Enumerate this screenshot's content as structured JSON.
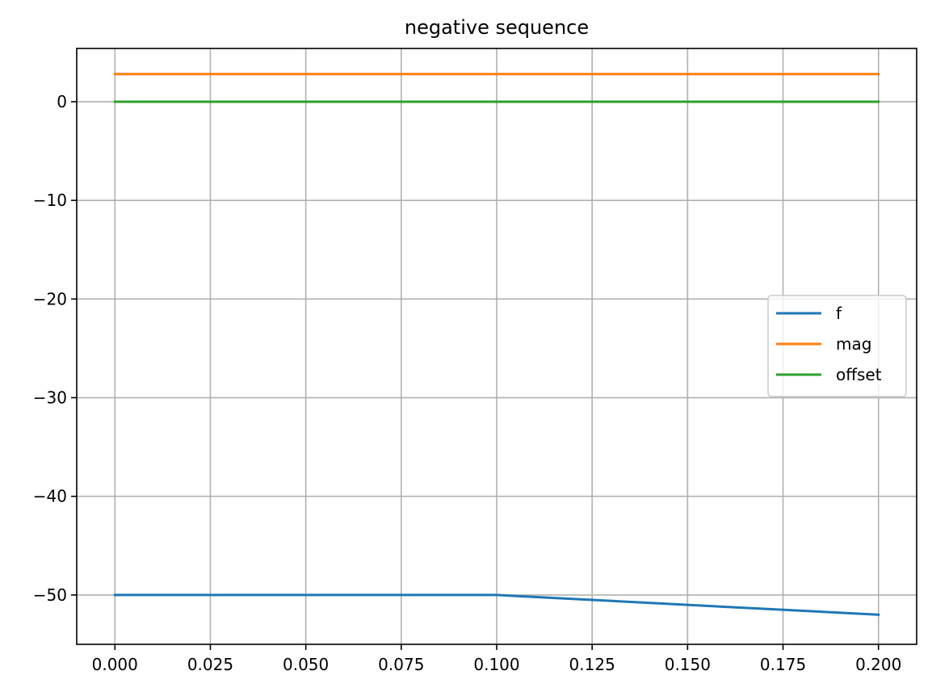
{
  "chart_data": {
    "type": "line",
    "title": "negative sequence",
    "xlabel": "",
    "ylabel": "",
    "xlim": [
      -0.01,
      0.21
    ],
    "ylim": [
      -55.0,
      5.4
    ],
    "xticks": [
      0.0,
      0.025,
      0.05,
      0.075,
      0.1,
      0.125,
      0.15,
      0.175,
      0.2
    ],
    "xtick_labels": [
      "0.000",
      "0.025",
      "0.050",
      "0.075",
      "0.100",
      "0.125",
      "0.150",
      "0.175",
      "0.200"
    ],
    "yticks": [
      0,
      -10,
      -20,
      -30,
      -40,
      -50
    ],
    "ytick_labels": [
      "0",
      "−10",
      "−20",
      "−30",
      "−40",
      "−50"
    ],
    "grid": true,
    "legend_position": "center-right",
    "series": [
      {
        "name": "f",
        "color": "#1f77b4",
        "x": [
          0.0,
          0.1,
          0.2
        ],
        "y": [
          -50.0,
          -50.0,
          -52.0
        ]
      },
      {
        "name": "mag",
        "color": "#ff7f0e",
        "x": [
          0.0,
          0.2
        ],
        "y": [
          2.8,
          2.8
        ]
      },
      {
        "name": "offset",
        "color": "#2ca02c",
        "x": [
          0.0,
          0.2
        ],
        "y": [
          0.0,
          0.0
        ]
      }
    ]
  }
}
